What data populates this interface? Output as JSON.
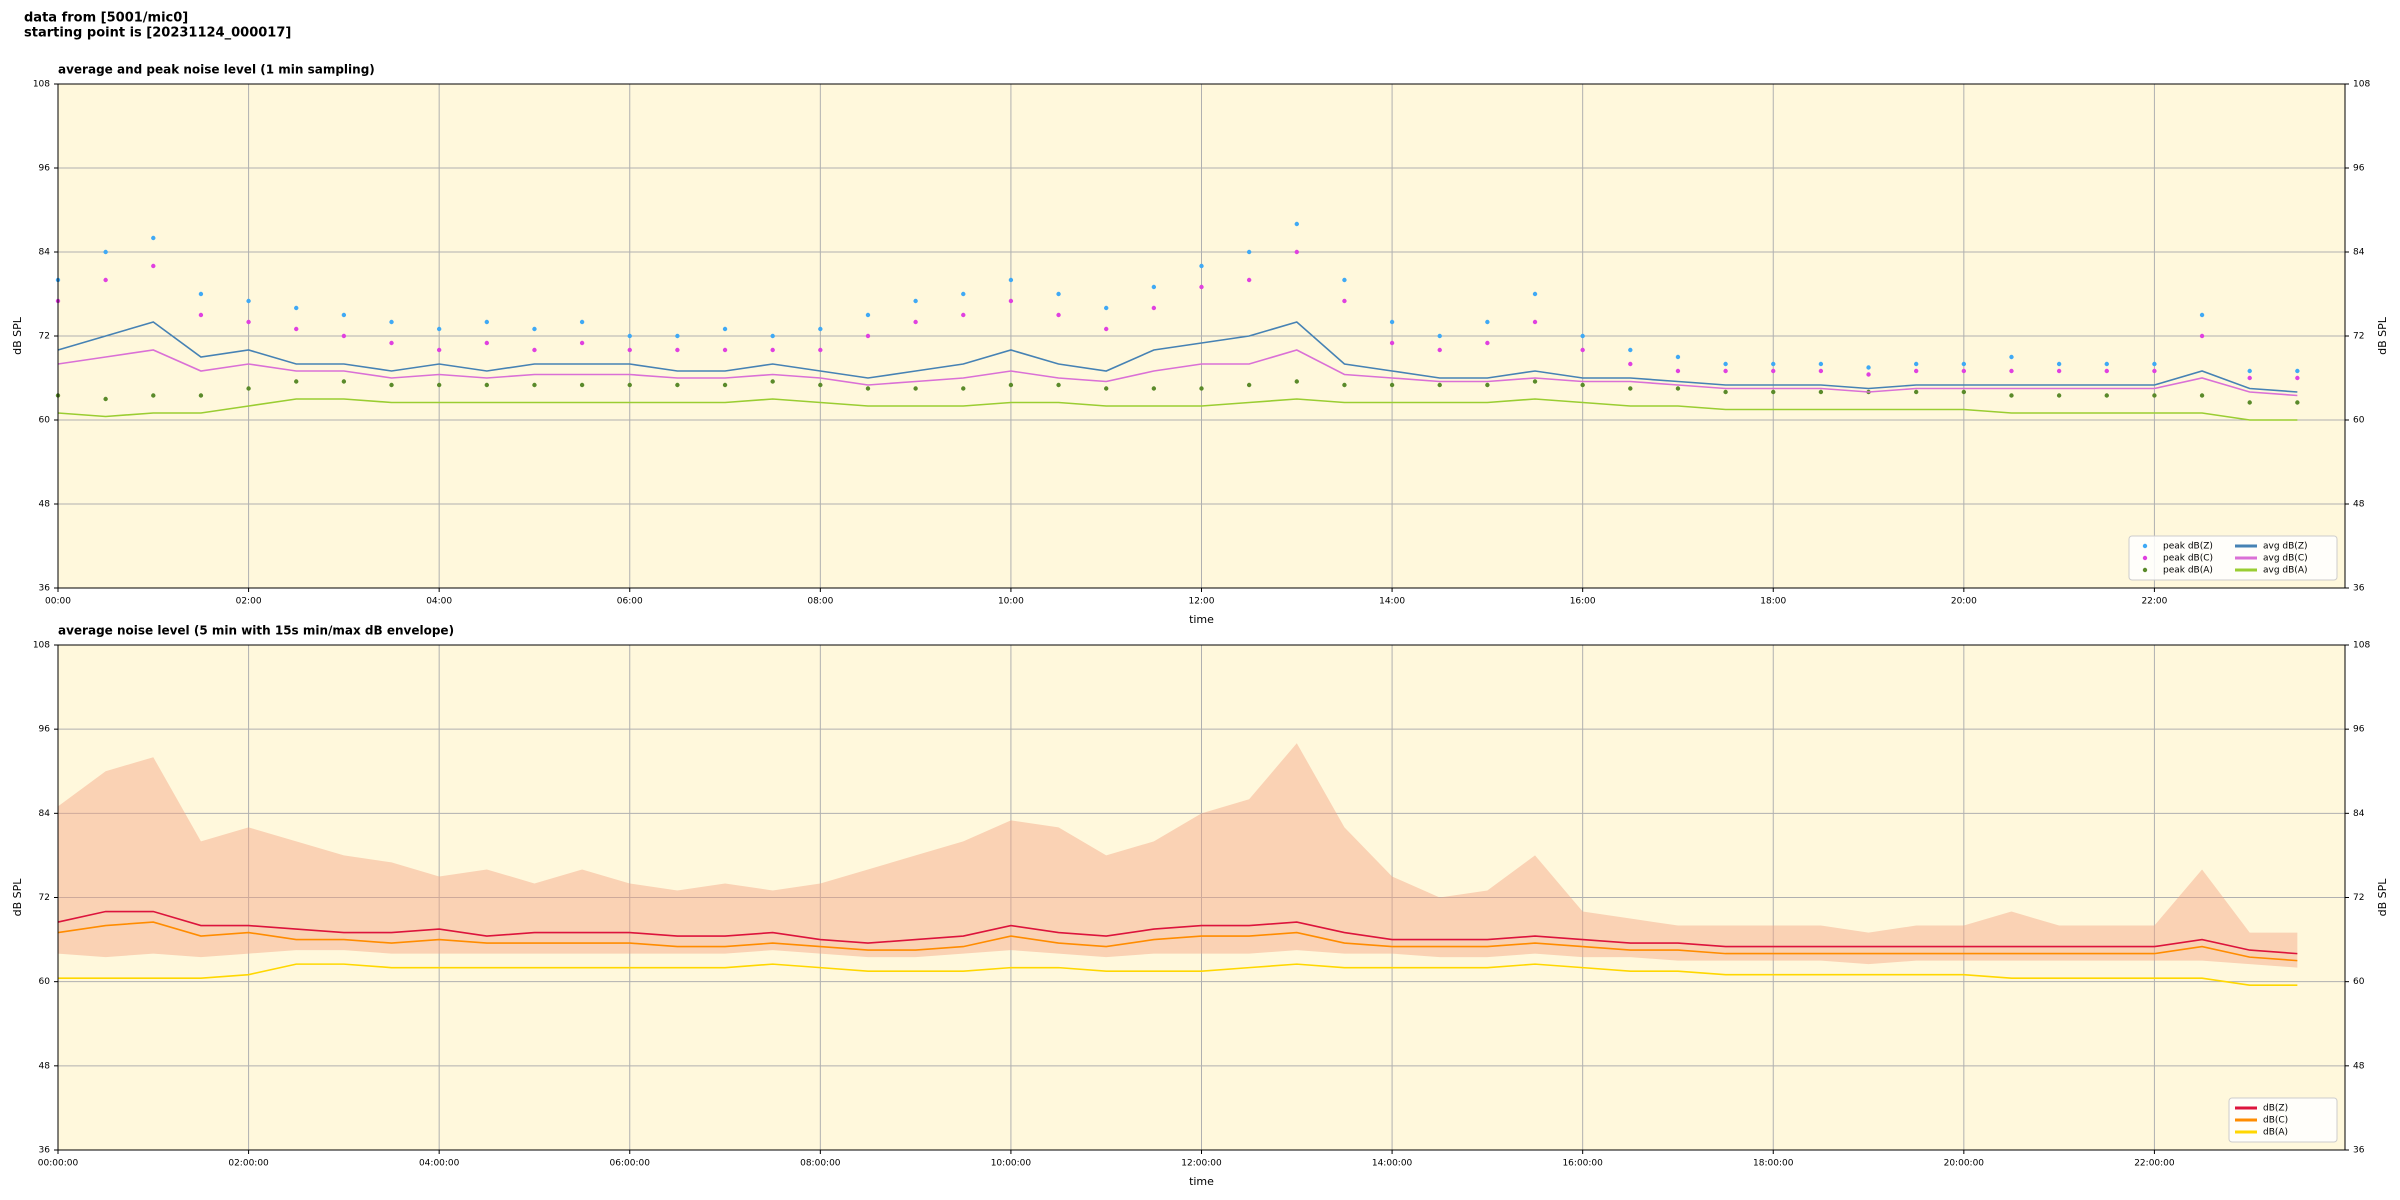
{
  "header": {
    "lines": [
      "data from [5001/mic0]",
      "starting point is [20231124_000017]"
    ]
  },
  "chart_data": [
    {
      "type": "line",
      "title": "average and peak noise level (1 min sampling)",
      "xlabel": "time",
      "ylabel": "dB SPL",
      "x": [
        "00:00",
        "00:30",
        "01:00",
        "01:30",
        "02:00",
        "02:30",
        "03:00",
        "03:30",
        "04:00",
        "04:30",
        "05:00",
        "05:30",
        "06:00",
        "06:30",
        "07:00",
        "07:30",
        "08:00",
        "08:30",
        "09:00",
        "09:30",
        "10:00",
        "10:30",
        "11:00",
        "11:30",
        "12:00",
        "12:30",
        "13:00",
        "13:30",
        "14:00",
        "14:30",
        "15:00",
        "15:30",
        "16:00",
        "16:30",
        "17:00",
        "17:30",
        "18:00",
        "18:30",
        "19:00",
        "19:30",
        "20:00",
        "20:30",
        "21:00",
        "21:30",
        "22:00",
        "22:30",
        "23:00",
        "23:30"
      ],
      "xlim": [
        "00:00",
        "24:00"
      ],
      "xticks": [
        "00:00",
        "02:00",
        "04:00",
        "06:00",
        "08:00",
        "10:00",
        "12:00",
        "14:00",
        "16:00",
        "18:00",
        "20:00",
        "22:00"
      ],
      "ylim": [
        36,
        108
      ],
      "yticks": [
        36,
        48,
        60,
        72,
        84,
        96,
        108
      ],
      "grid": true,
      "background": "#fff8dc",
      "legend": "lower right",
      "legend_columns": 2,
      "series": [
        {
          "name": "peak dB(Z)",
          "style": "markers",
          "color": "#3fa9f5",
          "values": [
            80,
            84,
            86,
            78,
            77,
            76,
            75,
            74,
            73,
            74,
            73,
            74,
            72,
            72,
            73,
            72,
            73,
            75,
            77,
            78,
            80,
            78,
            76,
            79,
            82,
            84,
            88,
            80,
            74,
            72,
            74,
            78,
            72,
            70,
            69,
            68,
            68,
            68,
            67.5,
            68,
            68,
            69,
            68,
            68,
            68,
            75,
            67,
            67
          ]
        },
        {
          "name": "peak dB(C)",
          "style": "markers",
          "color": "#e040e0",
          "values": [
            77,
            80,
            82,
            75,
            74,
            73,
            72,
            71,
            70,
            71,
            70,
            71,
            70,
            70,
            70,
            70,
            70,
            72,
            74,
            75,
            77,
            75,
            73,
            76,
            79,
            80,
            84,
            77,
            71,
            70,
            71,
            74,
            70,
            68,
            67,
            67,
            67,
            67,
            66.5,
            67,
            67,
            67,
            67,
            67,
            67,
            72,
            66,
            66
          ]
        },
        {
          "name": "peak dB(A)",
          "style": "markers",
          "color": "#5a8a2a",
          "values": [
            63.5,
            63,
            63.5,
            63.5,
            64.5,
            65.5,
            65.5,
            65,
            65,
            65,
            65,
            65,
            65,
            65,
            65,
            65.5,
            65,
            64.5,
            64.5,
            64.5,
            65,
            65,
            64.5,
            64.5,
            64.5,
            65,
            65.5,
            65,
            65,
            65,
            65,
            65.5,
            65,
            64.5,
            64.5,
            64,
            64,
            64,
            64,
            64,
            64,
            63.5,
            63.5,
            63.5,
            63.5,
            63.5,
            62.5,
            62.5
          ]
        },
        {
          "name": "avg dB(Z)",
          "style": "line",
          "color": "#4682b4",
          "values": [
            70,
            72,
            74,
            69,
            70,
            68,
            68,
            67,
            68,
            67,
            68,
            68,
            68,
            67,
            67,
            68,
            67,
            66,
            67,
            68,
            70,
            68,
            67,
            70,
            71,
            72,
            74,
            68,
            67,
            66,
            66,
            67,
            66,
            66,
            65.5,
            65,
            65,
            65,
            64.5,
            65,
            65,
            65,
            65,
            65,
            65,
            67,
            64.5,
            64
          ]
        },
        {
          "name": "avg dB(C)",
          "style": "line",
          "color": "#da70d6",
          "values": [
            68,
            69,
            70,
            67,
            68,
            67,
            67,
            66,
            66.5,
            66,
            66.5,
            66.5,
            66.5,
            66,
            66,
            66.5,
            66,
            65,
            65.5,
            66,
            67,
            66,
            65.5,
            67,
            68,
            68,
            70,
            66.5,
            66,
            65.5,
            65.5,
            66,
            65.5,
            65.5,
            65,
            64.5,
            64.5,
            64.5,
            64,
            64.5,
            64.5,
            64.5,
            64.5,
            64.5,
            64.5,
            66,
            64,
            63.5
          ]
        },
        {
          "name": "avg dB(A)",
          "style": "line",
          "color": "#9acd32",
          "values": [
            61,
            60.5,
            61,
            61,
            62,
            63,
            63,
            62.5,
            62.5,
            62.5,
            62.5,
            62.5,
            62.5,
            62.5,
            62.5,
            63,
            62.5,
            62,
            62,
            62,
            62.5,
            62.5,
            62,
            62,
            62,
            62.5,
            63,
            62.5,
            62.5,
            62.5,
            62.5,
            63,
            62.5,
            62,
            62,
            61.5,
            61.5,
            61.5,
            61.5,
            61.5,
            61.5,
            61,
            61,
            61,
            61,
            61,
            60,
            60
          ]
        }
      ]
    },
    {
      "type": "line",
      "title": "average noise level (5 min with 15s min/max dB envelope)",
      "xlabel": "time",
      "ylabel": "dB SPL",
      "x": [
        "00:00",
        "00:30",
        "01:00",
        "01:30",
        "02:00",
        "02:30",
        "03:00",
        "03:30",
        "04:00",
        "04:30",
        "05:00",
        "05:30",
        "06:00",
        "06:30",
        "07:00",
        "07:30",
        "08:00",
        "08:30",
        "09:00",
        "09:30",
        "10:00",
        "10:30",
        "11:00",
        "11:30",
        "12:00",
        "12:30",
        "13:00",
        "13:30",
        "14:00",
        "14:30",
        "15:00",
        "15:30",
        "16:00",
        "16:30",
        "17:00",
        "17:30",
        "18:00",
        "18:30",
        "19:00",
        "19:30",
        "20:00",
        "20:30",
        "21:00",
        "21:30",
        "22:00",
        "22:30",
        "23:00",
        "23:30"
      ],
      "xlim": [
        "00:00",
        "24:00"
      ],
      "xticks": [
        {
          "value": "00:00",
          "label": "00:00:00"
        },
        {
          "value": "02:00",
          "label": "02:00:00"
        },
        {
          "value": "04:00",
          "label": "04:00:00"
        },
        {
          "value": "06:00",
          "label": "06:00:00"
        },
        {
          "value": "08:00",
          "label": "08:00:00"
        },
        {
          "value": "10:00",
          "label": "10:00:00"
        },
        {
          "value": "12:00",
          "label": "12:00:00"
        },
        {
          "value": "14:00",
          "label": "14:00:00"
        },
        {
          "value": "16:00",
          "label": "16:00:00"
        },
        {
          "value": "18:00",
          "label": "18:00:00"
        },
        {
          "value": "20:00",
          "label": "20:00:00"
        },
        {
          "value": "22:00",
          "label": "22:00:00"
        }
      ],
      "ylim": [
        36,
        108
      ],
      "yticks": [
        36,
        48,
        60,
        72,
        84,
        96,
        108
      ],
      "grid": true,
      "background": "#fff8dc",
      "legend": "lower right",
      "legend_columns": 1,
      "envelope": {
        "color": "#f4a582",
        "min": [
          64,
          63.5,
          64,
          63.5,
          64,
          64.5,
          64.5,
          64,
          64,
          64,
          64,
          64,
          64,
          64,
          64,
          64.5,
          64,
          63.5,
          63.5,
          64,
          64.5,
          64,
          63.5,
          64,
          64,
          64,
          64.5,
          64,
          64,
          63.5,
          63.5,
          64,
          63.5,
          63.5,
          63,
          63,
          63,
          63,
          62.5,
          63,
          63,
          63,
          63,
          63,
          63,
          63,
          62.5,
          62
        ],
        "max": [
          85,
          90,
          92,
          80,
          82,
          80,
          78,
          77,
          75,
          76,
          74,
          76,
          74,
          73,
          74,
          73,
          74,
          76,
          78,
          80,
          83,
          82,
          78,
          80,
          84,
          86,
          94,
          82,
          75,
          72,
          73,
          78,
          70,
          69,
          68,
          68,
          68,
          68,
          67,
          68,
          68,
          70,
          68,
          68,
          68,
          76,
          67,
          67
        ]
      },
      "series": [
        {
          "name": "dB(Z)",
          "style": "line",
          "color": "#dc143c",
          "values": [
            68.5,
            70,
            70,
            68,
            68,
            67.5,
            67,
            67,
            67.5,
            66.5,
            67,
            67,
            67,
            66.5,
            66.5,
            67,
            66,
            65.5,
            66,
            66.5,
            68,
            67,
            66.5,
            67.5,
            68,
            68,
            68.5,
            67,
            66,
            66,
            66,
            66.5,
            66,
            65.5,
            65.5,
            65,
            65,
            65,
            65,
            65,
            65,
            65,
            65,
            65,
            65,
            66,
            64.5,
            64
          ]
        },
        {
          "name": "dB(C)",
          "style": "line",
          "color": "#ff8c00",
          "values": [
            67,
            68,
            68.5,
            66.5,
            67,
            66,
            66,
            65.5,
            66,
            65.5,
            65.5,
            65.5,
            65.5,
            65,
            65,
            65.5,
            65,
            64.5,
            64.5,
            65,
            66.5,
            65.5,
            65,
            66,
            66.5,
            66.5,
            67,
            65.5,
            65,
            65,
            65,
            65.5,
            65,
            64.5,
            64.5,
            64,
            64,
            64,
            64,
            64,
            64,
            64,
            64,
            64,
            64,
            65,
            63.5,
            63
          ]
        },
        {
          "name": "dB(A)",
          "style": "line",
          "color": "#ffd700",
          "values": [
            60.5,
            60.5,
            60.5,
            60.5,
            61,
            62.5,
            62.5,
            62,
            62,
            62,
            62,
            62,
            62,
            62,
            62,
            62.5,
            62,
            61.5,
            61.5,
            61.5,
            62,
            62,
            61.5,
            61.5,
            61.5,
            62,
            62.5,
            62,
            62,
            62,
            62,
            62.5,
            62,
            61.5,
            61.5,
            61,
            61,
            61,
            61,
            61,
            61,
            60.5,
            60.5,
            60.5,
            60.5,
            60.5,
            59.5,
            59.5
          ]
        }
      ]
    }
  ]
}
